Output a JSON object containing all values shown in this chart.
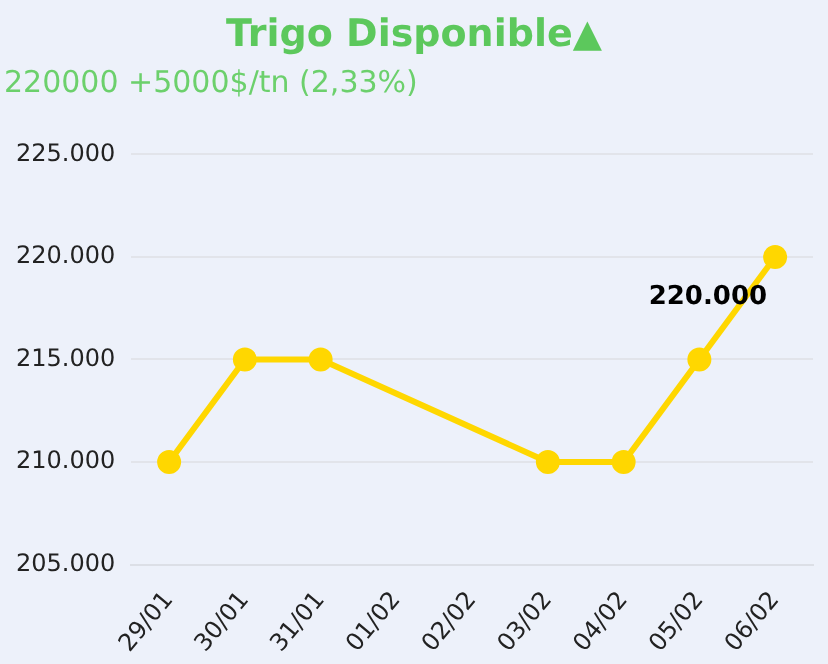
{
  "chart_data": {
    "type": "line",
    "title": "Trigo Disponible▲",
    "subtitle": "220000 +5000$/tn (2,33%)",
    "categories": [
      "29/01",
      "30/01",
      "31/01",
      "01/02",
      "02/02",
      "03/02",
      "04/02",
      "05/02",
      "06/02"
    ],
    "series": [
      {
        "color": "#ffd700",
        "values": [
          210000,
          215000,
          215000,
          null,
          null,
          210000,
          210000,
          215000,
          220000
        ],
        "value_labels": [
          null,
          null,
          null,
          null,
          null,
          null,
          null,
          null,
          "220.000"
        ]
      }
    ],
    "ylim": [
      205000,
      225000
    ],
    "yticks": [
      {
        "value": 205000,
        "label": "205.000"
      },
      {
        "value": 210000,
        "label": "210.000"
      },
      {
        "value": 215000,
        "label": "215.000"
      },
      {
        "value": 220000,
        "label": "220.000"
      },
      {
        "value": 225000,
        "label": "225.000"
      }
    ],
    "grid": "y",
    "marker": "circle",
    "line_style": "solid",
    "legend": false
  }
}
